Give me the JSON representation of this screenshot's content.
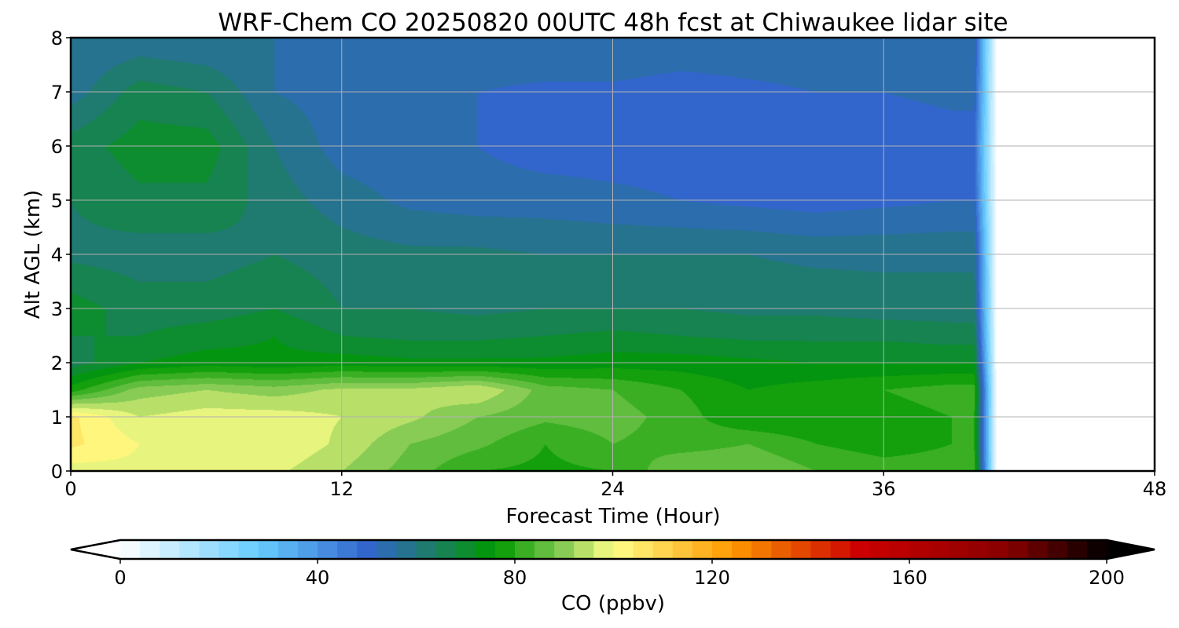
{
  "chart_data": {
    "type": "heatmap",
    "title": "WRF-Chem CO  20250820 00UTC 48h fcst at Chiwaukee lidar site",
    "xlabel": "Forecast Time (Hour)",
    "ylabel": "Alt AGL (km)",
    "xlim": [
      0,
      48
    ],
    "ylim": [
      0,
      8
    ],
    "xticks": [
      "0",
      "12",
      "24",
      "36",
      "48"
    ],
    "yticks": [
      "0",
      "1",
      "2",
      "3",
      "4",
      "5",
      "6",
      "7",
      "8"
    ],
    "grid": true,
    "x": [
      0,
      3,
      6,
      9,
      12,
      15,
      18,
      21,
      24,
      27,
      30,
      33,
      36,
      39,
      40,
      41
    ],
    "y": [
      0,
      0.5,
      1,
      1.5,
      2,
      2.5,
      3,
      4,
      5,
      6,
      7,
      8
    ],
    "z": [
      [
        98,
        99,
        98,
        97,
        92,
        86,
        80,
        79,
        80,
        88,
        88,
        84,
        82,
        82,
        82,
        0
      ],
      [
        105,
        100,
        100,
        100,
        95,
        88,
        85,
        80,
        84,
        82,
        84,
        80,
        78,
        80,
        80,
        0
      ],
      [
        105,
        96,
        98,
        98,
        96,
        93,
        88,
        85,
        86,
        82,
        76,
        76,
        78,
        80,
        80,
        0
      ],
      [
        78,
        90,
        92,
        90,
        93,
        93,
        96,
        86,
        84,
        80,
        76,
        78,
        80,
        82,
        82,
        0
      ],
      [
        66,
        72,
        74,
        73,
        74,
        73,
        73,
        73,
        74,
        74,
        73,
        72,
        72,
        72,
        72,
        0
      ],
      [
        68,
        68,
        70,
        72,
        68,
        67,
        67,
        68,
        69,
        68,
        67,
        67,
        67,
        66,
        66,
        0
      ],
      [
        70,
        66,
        66,
        68,
        64,
        64,
        63,
        64,
        64,
        64,
        63,
        63,
        62,
        62,
        62,
        0
      ],
      [
        63,
        62,
        62,
        64,
        62,
        61,
        61,
        60,
        60,
        60,
        60,
        59,
        59,
        59,
        59,
        0
      ],
      [
        64,
        67,
        67,
        62,
        58,
        55,
        54,
        54,
        53,
        52,
        51,
        50,
        51,
        52,
        52,
        0
      ],
      [
        66,
        70,
        70,
        60,
        54,
        53,
        52,
        50,
        50,
        50,
        49,
        49,
        49,
        50,
        50,
        0
      ],
      [
        58,
        66,
        64,
        56,
        54,
        53,
        52,
        51,
        51,
        50,
        51,
        52,
        52,
        53,
        53,
        0
      ],
      [
        56,
        57,
        56,
        56,
        56,
        55,
        55,
        56,
        56,
        55,
        55,
        55,
        55,
        55,
        55,
        0
      ]
    ],
    "colorbar": {
      "label": "CO  (ppbv)",
      "range": [
        0,
        200
      ],
      "step": 4,
      "extend": "both",
      "ticks": [
        "0",
        "40",
        "80",
        "120",
        "160",
        "200"
      ],
      "anchors": [
        {
          "v": 0,
          "c": "#ffffff"
        },
        {
          "v": 28,
          "c": "#66ccff"
        },
        {
          "v": 50,
          "c": "#3366cc"
        },
        {
          "v": 62,
          "c": "#1f7a70"
        },
        {
          "v": 76,
          "c": "#009900"
        },
        {
          "v": 90,
          "c": "#88cc55"
        },
        {
          "v": 100,
          "c": "#ffff88"
        },
        {
          "v": 124,
          "c": "#ff9900"
        },
        {
          "v": 150,
          "c": "#cc0000"
        },
        {
          "v": 180,
          "c": "#880000"
        },
        {
          "v": 200,
          "c": "#000000"
        }
      ]
    }
  }
}
